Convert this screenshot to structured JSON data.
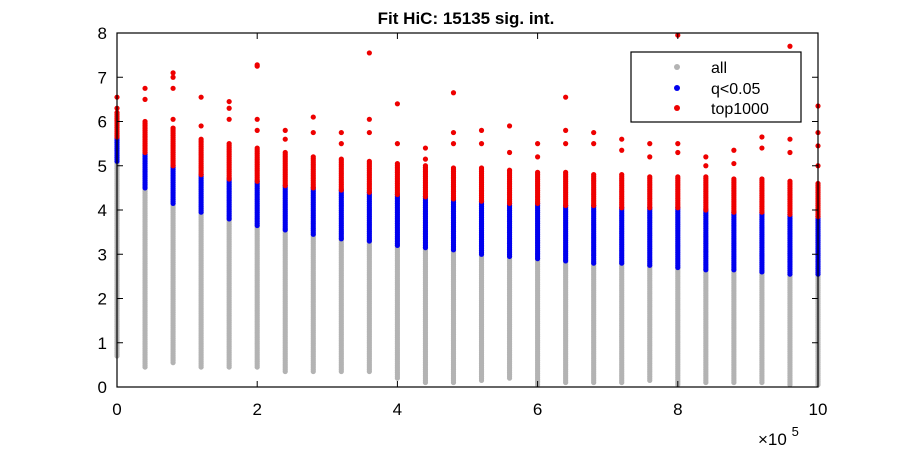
{
  "chart_data": {
    "type": "scatter",
    "title": "Fit HiC: 15135 sig. int.",
    "xlabel": "",
    "ylabel": "",
    "x_multiplier_label": "×10",
    "x_multiplier_exponent": "5",
    "xlim": [
      0,
      10
    ],
    "ylim": [
      0,
      8
    ],
    "x_ticks": [
      0,
      2,
      4,
      6,
      8,
      10
    ],
    "y_ticks": [
      0,
      1,
      2,
      3,
      4,
      5,
      6,
      7,
      8
    ],
    "grid": false,
    "legend_position": "top-right",
    "series": [
      {
        "name": "all",
        "color": "#b3b3b3",
        "columns": [
          {
            "x": 0.0,
            "y_min": 0.7,
            "y_max": 5.1
          },
          {
            "x": 0.4,
            "y_min": 0.45,
            "y_max": 4.5
          },
          {
            "x": 0.8,
            "y_min": 0.55,
            "y_max": 4.15
          },
          {
            "x": 1.2,
            "y_min": 0.45,
            "y_max": 3.95
          },
          {
            "x": 1.6,
            "y_min": 0.45,
            "y_max": 3.8
          },
          {
            "x": 2.0,
            "y_min": 0.45,
            "y_max": 3.65
          },
          {
            "x": 2.4,
            "y_min": 0.35,
            "y_max": 3.55
          },
          {
            "x": 2.8,
            "y_min": 0.35,
            "y_max": 3.45
          },
          {
            "x": 3.2,
            "y_min": 0.35,
            "y_max": 3.35
          },
          {
            "x": 3.6,
            "y_min": 0.35,
            "y_max": 3.3
          },
          {
            "x": 4.0,
            "y_min": 0.2,
            "y_max": 3.2
          },
          {
            "x": 4.4,
            "y_min": 0.1,
            "y_max": 3.15
          },
          {
            "x": 4.8,
            "y_min": 0.1,
            "y_max": 3.1
          },
          {
            "x": 5.2,
            "y_min": 0.15,
            "y_max": 3.0
          },
          {
            "x": 5.6,
            "y_min": 0.2,
            "y_max": 2.95
          },
          {
            "x": 6.0,
            "y_min": 0.05,
            "y_max": 2.9
          },
          {
            "x": 6.4,
            "y_min": 0.1,
            "y_max": 2.85
          },
          {
            "x": 6.8,
            "y_min": 0.1,
            "y_max": 2.8
          },
          {
            "x": 7.2,
            "y_min": 0.1,
            "y_max": 2.8
          },
          {
            "x": 7.6,
            "y_min": 0.15,
            "y_max": 2.75
          },
          {
            "x": 8.0,
            "y_min": 0.05,
            "y_max": 2.7
          },
          {
            "x": 8.4,
            "y_min": 0.1,
            "y_max": 2.65
          },
          {
            "x": 8.8,
            "y_min": 0.1,
            "y_max": 2.65
          },
          {
            "x": 9.2,
            "y_min": 0.1,
            "y_max": 2.6
          },
          {
            "x": 9.6,
            "y_min": 0.05,
            "y_max": 2.55
          },
          {
            "x": 10.0,
            "y_min": 0.05,
            "y_max": 2.55
          }
        ]
      },
      {
        "name": "q<0.05",
        "color": "#0000ee",
        "columns": [
          {
            "x": 0.0,
            "y_min": 5.1,
            "y_max": 5.65
          },
          {
            "x": 0.4,
            "y_min": 4.5,
            "y_max": 5.3
          },
          {
            "x": 0.8,
            "y_min": 4.15,
            "y_max": 5.0
          },
          {
            "x": 1.2,
            "y_min": 3.95,
            "y_max": 4.8
          },
          {
            "x": 1.6,
            "y_min": 3.8,
            "y_max": 4.7
          },
          {
            "x": 2.0,
            "y_min": 3.65,
            "y_max": 4.65
          },
          {
            "x": 2.4,
            "y_min": 3.55,
            "y_max": 4.55
          },
          {
            "x": 2.8,
            "y_min": 3.45,
            "y_max": 4.5
          },
          {
            "x": 3.2,
            "y_min": 3.35,
            "y_max": 4.45
          },
          {
            "x": 3.6,
            "y_min": 3.3,
            "y_max": 4.4
          },
          {
            "x": 4.0,
            "y_min": 3.2,
            "y_max": 4.35
          },
          {
            "x": 4.4,
            "y_min": 3.15,
            "y_max": 4.3
          },
          {
            "x": 4.8,
            "y_min": 3.1,
            "y_max": 4.25
          },
          {
            "x": 5.2,
            "y_min": 3.0,
            "y_max": 4.2
          },
          {
            "x": 5.6,
            "y_min": 2.95,
            "y_max": 4.15
          },
          {
            "x": 6.0,
            "y_min": 2.9,
            "y_max": 4.15
          },
          {
            "x": 6.4,
            "y_min": 2.85,
            "y_max": 4.1
          },
          {
            "x": 6.8,
            "y_min": 2.8,
            "y_max": 4.1
          },
          {
            "x": 7.2,
            "y_min": 2.8,
            "y_max": 4.05
          },
          {
            "x": 7.6,
            "y_min": 2.75,
            "y_max": 4.05
          },
          {
            "x": 8.0,
            "y_min": 2.7,
            "y_max": 4.05
          },
          {
            "x": 8.4,
            "y_min": 2.65,
            "y_max": 4.0
          },
          {
            "x": 8.8,
            "y_min": 2.65,
            "y_max": 3.95
          },
          {
            "x": 9.2,
            "y_min": 2.6,
            "y_max": 3.95
          },
          {
            "x": 9.6,
            "y_min": 2.55,
            "y_max": 3.9
          },
          {
            "x": 10.0,
            "y_min": 2.55,
            "y_max": 3.85
          }
        ]
      },
      {
        "name": "top1000",
        "color": "#ee0000",
        "columns": [
          {
            "x": 0.0,
            "y_min": 5.65,
            "y_max": 6.2
          },
          {
            "x": 0.4,
            "y_min": 5.3,
            "y_max": 6.0
          },
          {
            "x": 0.8,
            "y_min": 5.0,
            "y_max": 5.85
          },
          {
            "x": 1.2,
            "y_min": 4.8,
            "y_max": 5.6
          },
          {
            "x": 1.6,
            "y_min": 4.7,
            "y_max": 5.5
          },
          {
            "x": 2.0,
            "y_min": 4.65,
            "y_max": 5.4
          },
          {
            "x": 2.4,
            "y_min": 4.55,
            "y_max": 5.3
          },
          {
            "x": 2.8,
            "y_min": 4.5,
            "y_max": 5.2
          },
          {
            "x": 3.2,
            "y_min": 4.45,
            "y_max": 5.15
          },
          {
            "x": 3.6,
            "y_min": 4.4,
            "y_max": 5.1
          },
          {
            "x": 4.0,
            "y_min": 4.35,
            "y_max": 5.05
          },
          {
            "x": 4.4,
            "y_min": 4.3,
            "y_max": 5.0
          },
          {
            "x": 4.8,
            "y_min": 4.25,
            "y_max": 4.95
          },
          {
            "x": 5.2,
            "y_min": 4.2,
            "y_max": 4.95
          },
          {
            "x": 5.6,
            "y_min": 4.15,
            "y_max": 4.9
          },
          {
            "x": 6.0,
            "y_min": 4.15,
            "y_max": 4.85
          },
          {
            "x": 6.4,
            "y_min": 4.1,
            "y_max": 4.85
          },
          {
            "x": 6.8,
            "y_min": 4.1,
            "y_max": 4.8
          },
          {
            "x": 7.2,
            "y_min": 4.05,
            "y_max": 4.8
          },
          {
            "x": 7.6,
            "y_min": 4.05,
            "y_max": 4.75
          },
          {
            "x": 8.0,
            "y_min": 4.05,
            "y_max": 4.75
          },
          {
            "x": 8.4,
            "y_min": 4.0,
            "y_max": 4.75
          },
          {
            "x": 8.8,
            "y_min": 3.95,
            "y_max": 4.7
          },
          {
            "x": 9.2,
            "y_min": 3.95,
            "y_max": 4.7
          },
          {
            "x": 9.6,
            "y_min": 3.9,
            "y_max": 4.65
          },
          {
            "x": 10.0,
            "y_min": 3.85,
            "y_max": 4.6
          }
        ],
        "outliers": [
          {
            "x": 0.0,
            "y": 6.55
          },
          {
            "x": 0.0,
            "y": 6.3
          },
          {
            "x": 0.4,
            "y": 6.75
          },
          {
            "x": 0.4,
            "y": 6.5
          },
          {
            "x": 0.8,
            "y": 7.1
          },
          {
            "x": 0.8,
            "y": 7.0
          },
          {
            "x": 0.8,
            "y": 6.75
          },
          {
            "x": 0.8,
            "y": 6.05
          },
          {
            "x": 1.2,
            "y": 6.55
          },
          {
            "x": 1.2,
            "y": 5.9
          },
          {
            "x": 1.6,
            "y": 6.45
          },
          {
            "x": 1.6,
            "y": 6.3
          },
          {
            "x": 1.6,
            "y": 6.05
          },
          {
            "x": 2.0,
            "y": 7.28
          },
          {
            "x": 2.0,
            "y": 7.25
          },
          {
            "x": 2.0,
            "y": 6.05
          },
          {
            "x": 2.0,
            "y": 5.8
          },
          {
            "x": 2.4,
            "y": 5.8
          },
          {
            "x": 2.4,
            "y": 5.6
          },
          {
            "x": 2.8,
            "y": 6.1
          },
          {
            "x": 2.8,
            "y": 5.75
          },
          {
            "x": 3.2,
            "y": 5.75
          },
          {
            "x": 3.2,
            "y": 5.5
          },
          {
            "x": 3.6,
            "y": 7.55
          },
          {
            "x": 3.6,
            "y": 6.05
          },
          {
            "x": 3.6,
            "y": 5.75
          },
          {
            "x": 4.0,
            "y": 6.4
          },
          {
            "x": 4.0,
            "y": 5.5
          },
          {
            "x": 4.4,
            "y": 5.4
          },
          {
            "x": 4.4,
            "y": 5.15
          },
          {
            "x": 4.8,
            "y": 6.65
          },
          {
            "x": 4.8,
            "y": 5.75
          },
          {
            "x": 4.8,
            "y": 5.5
          },
          {
            "x": 5.2,
            "y": 5.8
          },
          {
            "x": 5.2,
            "y": 5.5
          },
          {
            "x": 5.6,
            "y": 5.9
          },
          {
            "x": 5.6,
            "y": 5.3
          },
          {
            "x": 6.0,
            "y": 5.5
          },
          {
            "x": 6.0,
            "y": 5.2
          },
          {
            "x": 6.4,
            "y": 6.55
          },
          {
            "x": 6.4,
            "y": 5.8
          },
          {
            "x": 6.4,
            "y": 5.5
          },
          {
            "x": 6.8,
            "y": 5.75
          },
          {
            "x": 6.8,
            "y": 5.5
          },
          {
            "x": 7.2,
            "y": 5.6
          },
          {
            "x": 7.2,
            "y": 5.35
          },
          {
            "x": 7.6,
            "y": 5.5
          },
          {
            "x": 7.6,
            "y": 5.2
          },
          {
            "x": 8.0,
            "y": 7.95
          },
          {
            "x": 8.0,
            "y": 5.5
          },
          {
            "x": 8.0,
            "y": 5.3
          },
          {
            "x": 8.4,
            "y": 5.2
          },
          {
            "x": 8.4,
            "y": 5.0
          },
          {
            "x": 8.8,
            "y": 5.35
          },
          {
            "x": 8.8,
            "y": 5.05
          },
          {
            "x": 9.2,
            "y": 5.65
          },
          {
            "x": 9.2,
            "y": 5.4
          },
          {
            "x": 9.6,
            "y": 7.7
          },
          {
            "x": 9.6,
            "y": 5.6
          },
          {
            "x": 9.6,
            "y": 5.3
          },
          {
            "x": 10.0,
            "y": 6.35
          },
          {
            "x": 10.0,
            "y": 5.75
          },
          {
            "x": 10.0,
            "y": 5.45
          },
          {
            "x": 10.0,
            "y": 5.0
          }
        ]
      }
    ]
  }
}
